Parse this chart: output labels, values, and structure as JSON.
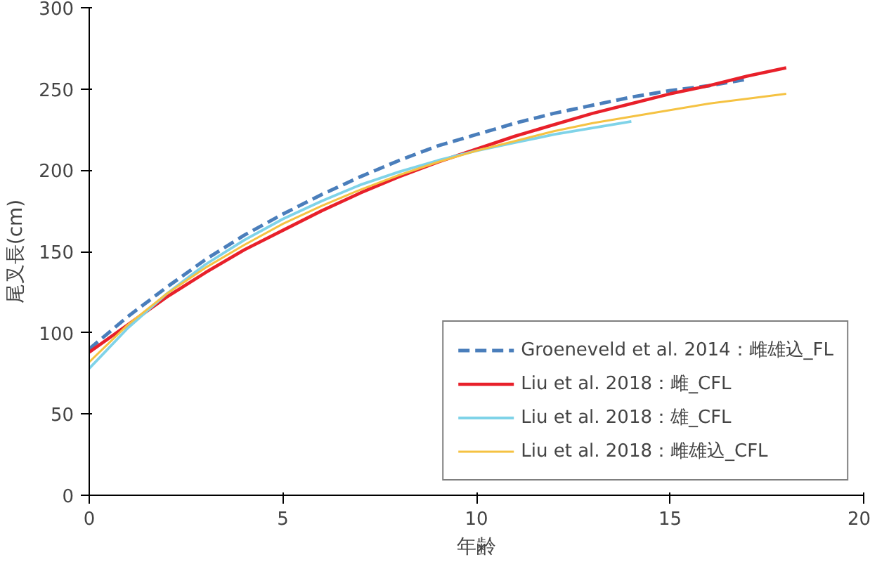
{
  "chart_data": {
    "type": "line",
    "xlabel": "年齢",
    "ylabel": "尾叉長(cm)",
    "xlim": [
      0,
      20
    ],
    "xticks": [
      0,
      5,
      10,
      15,
      20
    ],
    "ylim": [
      0,
      300
    ],
    "yticks": [
      0,
      50,
      100,
      150,
      200,
      250,
      300
    ],
    "grid": false,
    "legend": "bottom right",
    "marker": "none",
    "series": [
      {
        "name": "Groeneveld et al. 2014：雌雄込_FL",
        "color": "#4a7ebb",
        "line_style": "dashed",
        "x": [
          0,
          1,
          2,
          3,
          4,
          5,
          6,
          7,
          8,
          9,
          10,
          11,
          12,
          13,
          14,
          15,
          16,
          17
        ],
        "values": [
          90,
          110,
          128,
          145,
          160,
          173,
          185,
          196,
          206,
          215,
          222,
          229,
          235,
          240,
          245,
          249,
          252,
          256
        ]
      },
      {
        "name": "Liu et al. 2018：雌_CFL",
        "color": "#e8202a",
        "line_style": "solid",
        "x": [
          0,
          1,
          2,
          3,
          4,
          5,
          6,
          7,
          8,
          9,
          10,
          11,
          12,
          13,
          14,
          15,
          16,
          17,
          18
        ],
        "values": [
          88,
          105,
          122,
          137,
          151,
          163,
          175,
          186,
          196,
          205,
          213,
          221,
          228,
          235,
          241,
          247,
          252,
          258,
          263
        ]
      },
      {
        "name": "Liu et al. 2018：雄_CFL",
        "color": "#7fd3e8",
        "line_style": "solid",
        "x": [
          0,
          1,
          2,
          3,
          4,
          5,
          6,
          7,
          8,
          9,
          10,
          11,
          12,
          13,
          14
        ],
        "values": [
          78,
          103,
          124,
          142,
          157,
          170,
          181,
          191,
          199,
          206,
          212,
          217,
          222,
          226,
          230
        ]
      },
      {
        "name": "Liu et al. 2018：雌雄込_CFL",
        "color": "#f5c242",
        "line_style": "solid",
        "x": [
          0,
          1,
          2,
          3,
          4,
          5,
          6,
          7,
          8,
          9,
          10,
          11,
          12,
          13,
          14,
          15,
          16,
          17,
          18
        ],
        "values": [
          82,
          105,
          124,
          140,
          154,
          167,
          178,
          188,
          197,
          205,
          212,
          218,
          224,
          229,
          233,
          237,
          241,
          244,
          247
        ]
      }
    ]
  }
}
